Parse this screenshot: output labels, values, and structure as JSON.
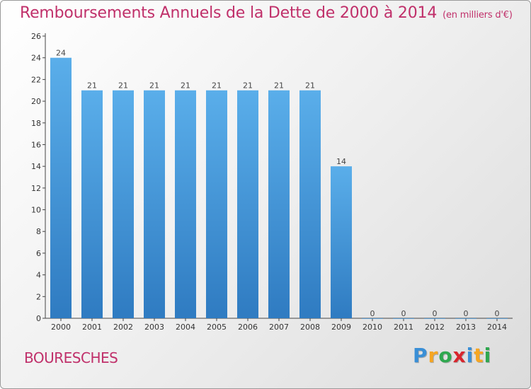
{
  "header": {
    "title": "Remboursements Annuels de la Dette de 2000 à 2014",
    "subtitle": "(en milliers d'€)"
  },
  "commune": "BOURESCHES",
  "logo": {
    "text": "Proxiti",
    "letters": [
      {
        "ch": "P",
        "color": "#3a8fd6"
      },
      {
        "ch": "r",
        "color": "#f5a623"
      },
      {
        "ch": "o",
        "color": "#2fa84f"
      },
      {
        "ch": "x",
        "color": "#d8262e"
      },
      {
        "ch": "i",
        "color": "#3a8fd6"
      },
      {
        "ch": "t",
        "color": "#f5a623"
      },
      {
        "ch": "i",
        "color": "#2fa84f"
      }
    ]
  },
  "colors": {
    "bar_top": "#5aaeea",
    "bar_bottom": "#2f7bc1",
    "title": "#c0306a"
  },
  "chart_data": {
    "type": "bar",
    "title": "Remboursements Annuels de la Dette de 2000 à 2014",
    "subtitle": "(en milliers d'€)",
    "categories": [
      "2000",
      "2001",
      "2002",
      "2003",
      "2004",
      "2005",
      "2006",
      "2007",
      "2008",
      "2009",
      "2010",
      "2011",
      "2012",
      "2013",
      "2014"
    ],
    "values": [
      24,
      21,
      21,
      21,
      21,
      21,
      21,
      21,
      21,
      14,
      0,
      0,
      0,
      0,
      0
    ],
    "data_labels": [
      "24",
      "21",
      "21",
      "21",
      "21",
      "21",
      "21",
      "21",
      "21",
      "14",
      "0",
      "0",
      "0",
      "0",
      "0"
    ],
    "ylim": [
      0,
      26
    ],
    "yticks": [
      "0",
      "2",
      "4",
      "6",
      "8",
      "10",
      "12",
      "14",
      "16",
      "18",
      "20",
      "22",
      "24",
      "26"
    ],
    "ytick_values": [
      0,
      2,
      4,
      6,
      8,
      10,
      12,
      14,
      16,
      18,
      20,
      22,
      24,
      26
    ],
    "grid": false,
    "legend": "none"
  }
}
